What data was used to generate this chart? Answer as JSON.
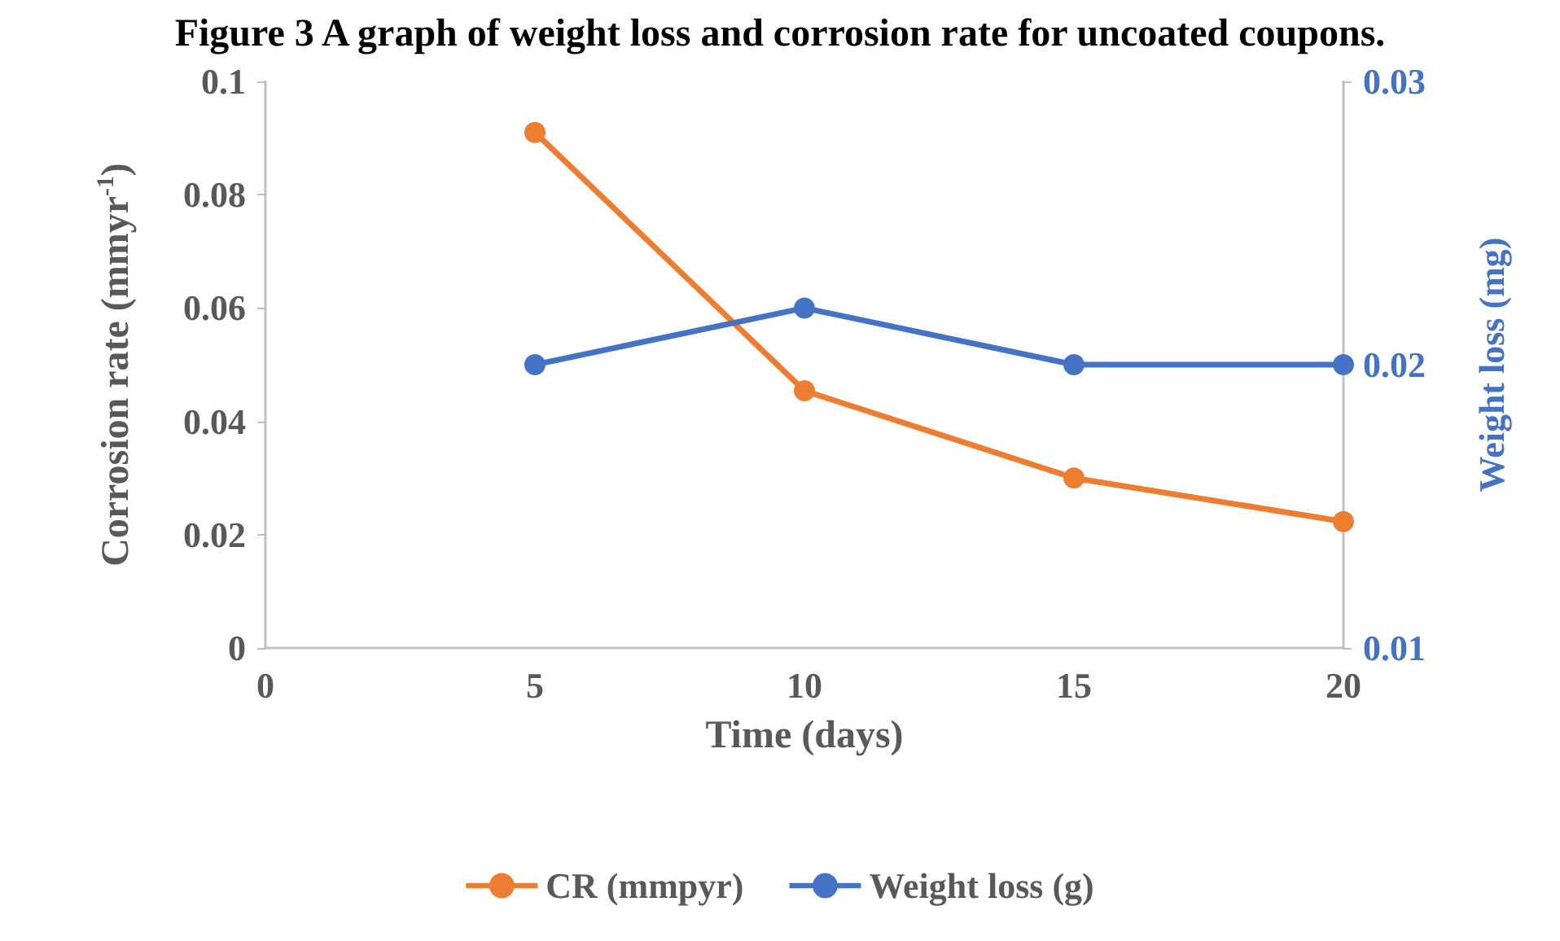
{
  "chart_data": {
    "type": "line",
    "title": "Figure 3 A graph of weight loss and corrosion rate for uncoated coupons.",
    "xlabel": "Time (days)",
    "ylabel": "Corrosion rate (mmyr$^{-1}$)",
    "y2label": "Weight loss (mg)",
    "x": [
      5,
      10,
      15,
      20
    ],
    "series": [
      {
        "name": "CR (mmpyr)",
        "color": "#ed7d31",
        "values": [
          0.091,
          0.0454,
          0.03,
          0.0223
        ]
      },
      {
        "name": "Weight loss (g)",
        "color": "#4472c4",
        "values": [
          0.02,
          0.022,
          0.02,
          0.02
        ],
        "axis": "y2"
      }
    ],
    "xlim": [
      0,
      20
    ],
    "xticks": [
      0,
      5,
      10,
      15,
      20
    ],
    "ylim": [
      0,
      0.1
    ],
    "yticks": [
      0,
      0.02,
      0.04,
      0.06,
      0.08,
      0.1
    ],
    "y2lim": [
      0.01,
      0.03
    ],
    "y2ticks": [
      0.01,
      0.02,
      0.03
    ],
    "grid": false,
    "legend": "bottom",
    "marker": "circle",
    "line_style": "solid"
  }
}
